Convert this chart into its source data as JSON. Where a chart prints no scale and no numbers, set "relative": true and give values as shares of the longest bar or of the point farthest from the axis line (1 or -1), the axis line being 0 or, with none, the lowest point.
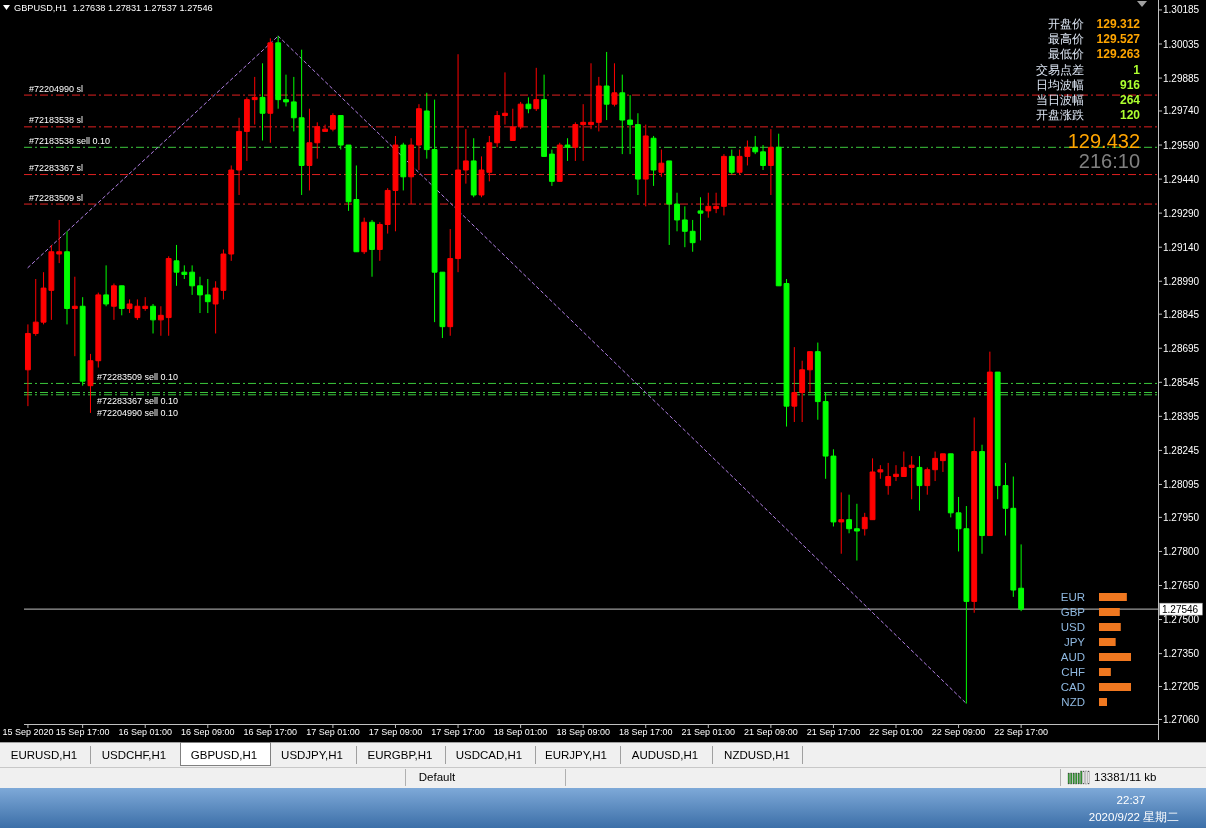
{
  "chart_data": [
    {
      "type": "candlestick",
      "title": "GBPUSD,H1  1.27638 1.27831 1.27537 1.27546",
      "categories": [
        "15 Sep 2020",
        null,
        null,
        null,
        null,
        null,
        null,
        "15 Sep 17:00",
        null,
        null,
        null,
        null,
        null,
        null,
        null,
        "16 Sep 01:00",
        null,
        null,
        null,
        null,
        null,
        null,
        null,
        "16 Sep 09:00",
        null,
        null,
        null,
        null,
        null,
        null,
        null,
        "16 Sep 17:00",
        null,
        null,
        null,
        null,
        null,
        null,
        null,
        "17 Sep 01:00",
        null,
        null,
        null,
        null,
        null,
        null,
        null,
        "17 Sep 09:00",
        null,
        null,
        null,
        null,
        null,
        null,
        null,
        "17 Sep 17:00",
        null,
        null,
        null,
        null,
        null,
        null,
        null,
        "18 Sep 01:00",
        null,
        null,
        null,
        null,
        null,
        null,
        null,
        "18 Sep 09:00",
        null,
        null,
        null,
        null,
        null,
        null,
        null,
        "18 Sep 17:00",
        null,
        null,
        null,
        null,
        null,
        null,
        null,
        "21 Sep 01:00",
        null,
        null,
        null,
        null,
        null,
        null,
        null,
        "21 Sep 09:00",
        null,
        null,
        null,
        null,
        null,
        null,
        null,
        "21 Sep 17:00",
        null,
        null,
        null,
        null,
        null,
        null,
        null,
        "22 Sep 01:00",
        null,
        null,
        null,
        null,
        null,
        null,
        null,
        "22 Sep 09:00",
        null,
        null,
        null,
        null,
        null,
        null,
        null,
        "22 Sep 17:00",
        null,
        null,
        null,
        null,
        null,
        null,
        null,
        null,
        null,
        null,
        null,
        null,
        null,
        null,
        null,
        null,
        null
      ],
      "ohlc": [
        [
          1.286,
          1.288,
          1.2844,
          1.2876
        ],
        [
          1.2876,
          1.29,
          1.2875,
          1.2881
        ],
        [
          1.2881,
          1.2903,
          1.288,
          1.2896
        ],
        [
          1.2895,
          1.2915,
          1.2882,
          1.2912
        ],
        [
          1.2911,
          1.2926,
          1.2907,
          1.2912
        ],
        [
          1.2912,
          1.2921,
          1.288,
          1.2887
        ],
        [
          1.2887,
          1.2901,
          1.2866,
          1.2888
        ],
        [
          1.2888,
          1.2892,
          1.2853,
          1.2855
        ],
        [
          1.2853,
          1.2867,
          1.2841,
          1.2864
        ],
        [
          1.2864,
          1.2894,
          1.2861,
          1.2893
        ],
        [
          1.2893,
          1.2906,
          1.2888,
          1.2889
        ],
        [
          1.2888,
          1.2898,
          1.2882,
          1.2897
        ],
        [
          1.2897,
          1.2897,
          1.2884,
          1.2887
        ],
        [
          1.2887,
          1.2891,
          1.2885,
          1.2889
        ],
        [
          1.2883,
          1.2891,
          1.2882,
          1.2888
        ],
        [
          1.2887,
          1.2892,
          1.2886,
          1.2888
        ],
        [
          1.2888,
          1.2889,
          1.2876,
          1.2882
        ],
        [
          1.2882,
          1.2888,
          1.2875,
          1.2884
        ],
        [
          1.2883,
          1.291,
          1.2875,
          1.2909
        ],
        [
          1.2908,
          1.2915,
          1.2897,
          1.2903
        ],
        [
          1.2903,
          1.2906,
          1.29,
          1.2902
        ],
        [
          1.2903,
          1.2906,
          1.2893,
          1.2897
        ],
        [
          1.2897,
          1.2901,
          1.2885,
          1.2893
        ],
        [
          1.2893,
          1.29,
          1.2885,
          1.289
        ],
        [
          1.2889,
          1.2899,
          1.2876,
          1.2896
        ],
        [
          1.2895,
          1.2913,
          1.2891,
          1.2911
        ],
        [
          1.2911,
          1.295,
          1.2908,
          1.2948
        ],
        [
          1.2948,
          1.2971,
          1.2937,
          1.2965
        ],
        [
          1.2965,
          1.298,
          1.2952,
          1.2979
        ],
        [
          1.2979,
          1.2989,
          1.2968,
          1.298
        ],
        [
          1.298,
          1.2995,
          1.2961,
          1.2973
        ],
        [
          1.2973,
          1.3006,
          1.296,
          1.3004
        ],
        [
          1.3004,
          1.3007,
          1.2975,
          1.2979
        ],
        [
          1.2979,
          1.299,
          1.2976,
          1.2978
        ],
        [
          1.2978,
          1.2989,
          1.2965,
          1.2971
        ],
        [
          1.2971,
          1.3001,
          1.2937,
          1.295
        ],
        [
          1.295,
          1.2975,
          1.2939,
          1.296
        ],
        [
          1.296,
          1.2969,
          1.2953,
          1.2967
        ],
        [
          1.2965,
          1.2968,
          1.2965,
          1.2966
        ],
        [
          1.2966,
          1.2973,
          1.2965,
          1.2972
        ],
        [
          1.2972,
          1.2972,
          1.2957,
          1.2959
        ],
        [
          1.2959,
          1.2959,
          1.293,
          1.2934
        ],
        [
          1.2935,
          1.295,
          1.2912,
          1.2912
        ],
        [
          1.2912,
          1.2927,
          1.2911,
          1.2925
        ],
        [
          1.2925,
          1.2926,
          1.2901,
          1.2913
        ],
        [
          1.2913,
          1.2925,
          1.2908,
          1.2924
        ],
        [
          1.2924,
          1.294,
          1.292,
          1.2939
        ],
        [
          1.2939,
          1.2963,
          1.2921,
          1.2959
        ],
        [
          1.2959,
          1.296,
          1.2939,
          1.2945
        ],
        [
          1.2945,
          1.2962,
          1.2933,
          1.2959
        ],
        [
          1.2959,
          1.2977,
          1.2948,
          1.2975
        ],
        [
          1.2974,
          1.2982,
          1.2953,
          1.2957
        ],
        [
          1.2957,
          1.2979,
          1.2881,
          1.2903
        ],
        [
          1.2903,
          1.2903,
          1.2874,
          1.2879
        ],
        [
          1.2879,
          1.2922,
          1.2875,
          1.2909
        ],
        [
          1.2909,
          1.2999,
          1.2903,
          1.2948
        ],
        [
          1.2948,
          1.2966,
          1.2942,
          1.2952
        ],
        [
          1.2952,
          1.2962,
          1.2936,
          1.2937
        ],
        [
          1.2937,
          1.2954,
          1.2936,
          1.2948
        ],
        [
          1.2947,
          1.2963,
          1.2943,
          1.296
        ],
        [
          1.296,
          1.2974,
          1.2958,
          1.2972
        ],
        [
          1.2972,
          1.2991,
          1.2968,
          1.2973
        ],
        [
          1.2961,
          1.2975,
          1.2961,
          1.2967
        ],
        [
          1.2967,
          1.2978,
          1.2966,
          1.2977
        ],
        [
          1.2977,
          1.298,
          1.2973,
          1.2975
        ],
        [
          1.2975,
          1.2993,
          1.2974,
          1.2979
        ],
        [
          1.2979,
          1.299,
          1.2954,
          1.2954
        ],
        [
          1.2955,
          1.2957,
          1.2941,
          1.2943
        ],
        [
          1.2943,
          1.296,
          1.2943,
          1.2959
        ],
        [
          1.2959,
          1.2962,
          1.2952,
          1.2958
        ],
        [
          1.2958,
          1.2969,
          1.2952,
          1.2968
        ],
        [
          1.2968,
          1.2977,
          1.2952,
          1.2969
        ],
        [
          1.2968,
          1.2995,
          1.2966,
          1.2969
        ],
        [
          1.2969,
          1.2989,
          1.2965,
          1.2985
        ],
        [
          1.2985,
          1.3,
          1.297,
          1.2977
        ],
        [
          1.2977,
          1.2995,
          1.2976,
          1.2982
        ],
        [
          1.2982,
          1.299,
          1.2955,
          1.297
        ],
        [
          1.297,
          1.2981,
          1.2955,
          1.2968
        ],
        [
          1.2968,
          1.2973,
          1.2937,
          1.2944
        ],
        [
          1.2944,
          1.2968,
          1.2932,
          1.2963
        ],
        [
          1.2962,
          1.2963,
          1.2941,
          1.2948
        ],
        [
          1.2947,
          1.2957,
          1.2945,
          1.2951
        ],
        [
          1.2952,
          1.2952,
          1.2915,
          1.2933
        ],
        [
          1.2933,
          1.2938,
          1.2921,
          1.2926
        ],
        [
          1.2926,
          1.2932,
          1.2914,
          1.2921
        ],
        [
          1.2921,
          1.2926,
          1.2912,
          1.2916
        ],
        [
          1.293,
          1.2936,
          1.2917,
          1.2929
        ],
        [
          1.293,
          1.2938,
          1.2927,
          1.2932
        ],
        [
          1.2931,
          1.2938,
          1.2929,
          1.2932
        ],
        [
          1.2932,
          1.2955,
          1.2928,
          1.2954
        ],
        [
          1.2954,
          1.2957,
          1.2946,
          1.2947
        ],
        [
          1.2947,
          1.2957,
          1.2946,
          1.2954
        ],
        [
          1.2954,
          1.2961,
          1.295,
          1.2958
        ],
        [
          1.2958,
          1.2963,
          1.2955,
          1.2956
        ],
        [
          1.2956,
          1.2959,
          1.2948,
          1.295
        ],
        [
          1.295,
          1.2966,
          1.2937,
          1.2958
        ],
        [
          1.2958,
          1.2964,
          1.2897,
          1.2897
        ],
        [
          1.2898,
          1.29,
          1.2835,
          1.2844
        ],
        [
          1.2844,
          1.287,
          1.2837,
          1.285
        ],
        [
          1.285,
          1.2864,
          1.2837,
          1.286
        ],
        [
          1.286,
          1.2868,
          1.285,
          1.2868
        ],
        [
          1.2868,
          1.2872,
          1.2838,
          1.2846
        ],
        [
          1.2846,
          1.285,
          1.2812,
          1.2822
        ],
        [
          1.2822,
          1.2825,
          1.2791,
          1.2793
        ],
        [
          1.2793,
          1.2806,
          1.2779,
          1.2794
        ],
        [
          1.2794,
          1.2805,
          1.2788,
          1.279
        ],
        [
          1.279,
          1.2801,
          1.2776,
          1.2789
        ],
        [
          1.279,
          1.2797,
          1.2787,
          1.2795
        ],
        [
          1.2794,
          1.2821,
          1.2794,
          1.2815
        ],
        [
          1.2815,
          1.2818,
          1.2812,
          1.2816
        ],
        [
          1.2809,
          1.2819,
          1.2805,
          1.2813
        ],
        [
          1.2813,
          1.2818,
          1.2811,
          1.2814
        ],
        [
          1.2813,
          1.2824,
          1.2813,
          1.2817
        ],
        [
          1.2817,
          1.2822,
          1.2803,
          1.2818
        ],
        [
          1.2817,
          1.2822,
          1.2798,
          1.2809
        ],
        [
          1.2809,
          1.2817,
          1.2805,
          1.2816
        ],
        [
          1.2816,
          1.2824,
          1.2811,
          1.2821
        ],
        [
          1.282,
          1.2823,
          1.2815,
          1.2823
        ],
        [
          1.2823,
          1.2823,
          1.2795,
          1.2797
        ],
        [
          1.2797,
          1.2804,
          1.278,
          1.279
        ],
        [
          1.279,
          1.28,
          1.2713,
          1.2758
        ],
        [
          1.2758,
          1.2839,
          1.2753,
          1.2824
        ],
        [
          1.2824,
          1.2827,
          1.2779,
          1.2787
        ],
        [
          1.2787,
          1.2868,
          1.2787,
          1.2859
        ],
        [
          1.2859,
          1.2859,
          1.2803,
          1.2809
        ],
        [
          1.2809,
          1.2819,
          1.2787,
          1.2799
        ],
        [
          1.2799,
          1.2813,
          1.276,
          1.2763
        ],
        [
          1.27638,
          1.27831,
          1.27537,
          1.27546
        ],
        null,
        null,
        null,
        null,
        null,
        null,
        null,
        null,
        null,
        null,
        null,
        null,
        null,
        null,
        null,
        null,
        null
      ],
      "colors": [
        "#ff0000",
        "#ff0000",
        "#ff0000",
        "#ff0000",
        "#ff0000",
        "#00ff00",
        "#ff0000",
        "#00ff00",
        "#ff0000",
        "#ff0000",
        "#00ff00",
        "#ff0000",
        "#00ff00",
        "#ff0000",
        "#ff0000",
        "#ff0000",
        "#00ff00",
        "#ff0000",
        "#ff0000",
        "#00ff00",
        "#00ff00",
        "#00ff00",
        "#00ff00",
        "#00ff00",
        "#ff0000",
        "#ff0000",
        "#ff0000",
        "#ff0000",
        "#ff0000",
        "#ff0000",
        "#00ff00",
        "#ff0000",
        "#00ff00",
        "#00ff00",
        "#00ff00",
        "#00ff00",
        "#ff0000",
        "#ff0000",
        "#ff0000",
        "#ff0000",
        "#00ff00",
        "#00ff00",
        "#00ff00",
        "#ff0000",
        "#00ff00",
        "#ff0000",
        "#ff0000",
        "#ff0000",
        "#00ff00",
        "#ff0000",
        "#ff0000",
        "#00ff00",
        "#00ff00",
        "#00ff00",
        "#ff0000",
        "#ff0000",
        "#ff0000",
        "#00ff00",
        "#ff0000",
        "#ff0000",
        "#ff0000",
        "#ff0000",
        "#ff0000",
        "#ff0000",
        "#00ff00",
        "#ff0000",
        "#00ff00",
        "#00ff00",
        "#ff0000",
        "#00ff00",
        "#ff0000",
        "#ff0000",
        "#ff0000",
        "#ff0000",
        "#00ff00",
        "#ff0000",
        "#00ff00",
        "#00ff00",
        "#00ff00",
        "#ff0000",
        "#00ff00",
        "#ff0000",
        "#00ff00",
        "#00ff00",
        "#00ff00",
        "#00ff00",
        "#00ff00",
        "#ff0000",
        "#ff0000",
        "#ff0000",
        "#00ff00",
        "#ff0000",
        "#ff0000",
        "#00ff00",
        "#00ff00",
        "#ff0000",
        "#00ff00",
        "#00ff00",
        "#ff0000",
        "#ff0000",
        "#ff0000",
        "#00ff00",
        "#00ff00",
        "#00ff00",
        "#ff0000",
        "#00ff00",
        "#00ff00",
        "#ff0000",
        "#ff0000",
        "#ff0000",
        "#ff0000",
        "#ff0000",
        "#ff0000",
        "#ff0000",
        "#00ff00",
        "#ff0000",
        "#ff0000",
        "#ff0000",
        "#00ff00",
        "#00ff00",
        "#00ff00",
        "#ff0000",
        "#00ff00",
        "#ff0000",
        "#00ff00",
        "#00ff00",
        "#00ff00",
        "#00ff00",
        null,
        null,
        null,
        null,
        null,
        null,
        null,
        null,
        null,
        null,
        null,
        null,
        null,
        null,
        null,
        null,
        null
      ],
      "ylim": [
        1.2704,
        1.3022
      ],
      "yticks": [
        1.30185,
        1.30035,
        1.29885,
        {
          "value": 1.2974,
          "label": "1.29740"
        },
        {
          "value": 1.2959,
          "label": "1.29590"
        },
        {
          "value": 1.2944,
          "label": "1.29440"
        },
        {
          "value": 1.2929,
          "label": "1.29290"
        },
        {
          "value": 1.2914,
          "label": "1.29140"
        },
        {
          "value": 1.2899,
          "label": "1.28990"
        },
        1.28845,
        1.28695,
        1.28545,
        1.28395,
        1.28245,
        1.28095,
        {
          "value": 1.2795,
          "label": "1.27950"
        },
        {
          "value": 1.278,
          "label": "1.27800"
        },
        {
          "value": 1.2765,
          "label": "1.27650"
        },
        {
          "value": 1.275,
          "label": "1.27500"
        },
        {
          "value": 1.2735,
          "label": "1.27350"
        },
        1.27205,
        {
          "value": 1.2706,
          "label": "1.27060"
        }
      ],
      "series": [
        {
          "type": "line",
          "color": "#b482e6",
          "line_style": "dotted",
          "values": [
            1.2905,
            null,
            null,
            null,
            null,
            null,
            null,
            null,
            null,
            null,
            null,
            null,
            null,
            null,
            null,
            null,
            null,
            null,
            null,
            null,
            null,
            null,
            null,
            null,
            null,
            null,
            null,
            null,
            null,
            null,
            null,
            null,
            1.3007,
            null,
            null,
            null,
            null,
            null,
            null,
            null,
            null,
            null,
            null,
            null,
            null,
            null,
            null,
            null,
            null,
            null,
            null,
            null,
            null,
            null,
            null,
            null,
            null,
            null,
            null,
            null,
            null,
            null,
            null,
            null,
            null,
            null,
            null,
            null,
            null,
            null,
            null,
            null,
            null,
            null,
            null,
            null,
            null,
            null,
            null,
            null,
            null,
            null,
            null,
            null,
            null,
            null,
            null,
            null,
            null,
            null,
            null,
            null,
            null,
            null,
            null,
            null,
            null,
            null,
            null,
            null,
            null,
            null,
            null,
            null,
            null,
            null,
            null,
            null,
            null,
            null,
            null,
            null,
            null,
            null,
            null,
            null,
            null,
            null,
            null,
            null,
            null,
            null,
            null,
            null,
            null,
            null,
            null,
            null,
            null,
            null,
            null,
            null,
            null,
            null,
            null,
            null,
            null,
            null,
            null,
            null,
            null,
            null,
            null,
            null,
            null
          ]
        },
        {
          "type": "line",
          "color": "#b482e6",
          "line_style": "dotted",
          "values": [
            null,
            null,
            null,
            null,
            null,
            null,
            null,
            null,
            null,
            null,
            null,
            null,
            null,
            null,
            null,
            null,
            null,
            null,
            null,
            null,
            null,
            null,
            null,
            null,
            null,
            null,
            null,
            null,
            null,
            null,
            null,
            null,
            1.3007,
            null,
            null,
            null,
            null,
            null,
            null,
            null,
            null,
            null,
            null,
            null,
            null,
            null,
            null,
            null,
            null,
            null,
            null,
            null,
            null,
            null,
            null,
            null,
            null,
            null,
            null,
            null,
            null,
            null,
            null,
            null,
            null,
            null,
            null,
            null,
            null,
            null,
            null,
            null,
            null,
            null,
            null,
            null,
            null,
            null,
            null,
            null,
            null,
            null,
            null,
            null,
            null,
            null,
            null,
            null,
            null,
            null,
            null,
            null,
            null,
            null,
            null,
            null,
            null,
            null,
            null,
            null,
            null,
            null,
            null,
            null,
            null,
            null,
            null,
            null,
            null,
            null,
            null,
            null,
            null,
            null,
            null,
            null,
            null,
            null,
            null,
            null,
            1.2713,
            null,
            null,
            null,
            null,
            null,
            null,
            null,
            null,
            null,
            null,
            null,
            null,
            null,
            null,
            null,
            null,
            null,
            null,
            null,
            null,
            null,
            null,
            null,
            null
          ]
        }
      ],
      "ref_lines": [
        {
          "axis": "y",
          "value": 1.2981,
          "label": "#72204990 sl",
          "color": "#e02020",
          "line_style": "dashed"
        },
        {
          "axis": "y",
          "value": 1.2967,
          "label": "#72183538 sl",
          "color": "#e02020",
          "line_style": "dashed"
        },
        {
          "axis": "y",
          "value": 1.2958,
          "label": "#72183538 sell 0.10",
          "color": "#3cc83c",
          "line_style": "dashed"
        },
        {
          "axis": "y",
          "value": 1.2946,
          "label": "#72283367 sl",
          "color": "#e02020",
          "line_style": "dashed"
        },
        {
          "axis": "y",
          "value": 1.2933,
          "label": "#72283509 sl",
          "color": "#e02020",
          "line_style": "dashed"
        },
        {
          "axis": "y",
          "value": 1.2854,
          "label": "#72283509 sell 0.10",
          "color": "#3cc83c",
          "line_style": "dashed"
        },
        {
          "axis": "y",
          "value": 1.285,
          "label": "#72283367 sell 0.10",
          "color": "#3cc83c",
          "line_style": "dashed"
        },
        {
          "axis": "y",
          "value": 1.2849,
          "label": "#72204990 sell 0.10",
          "color": "#3cc83c",
          "line_style": "dashed"
        },
        {
          "axis": "y",
          "value": 1.27546,
          "label": "1.27546",
          "color": "#c0c0c0",
          "line_style": "solid"
        }
      ],
      "annotations": [
        "开盘价",
        "129.312",
        "最高价",
        "129.527",
        "最低价",
        "129.263",
        "交易点差",
        "1",
        "日均波幅",
        "916",
        "当日波幅",
        "264",
        "开盘涨跌",
        "120",
        "129.432",
        "216:10",
        "EURUSD,H1",
        "USDCHF,H1",
        "GBPUSD,H1",
        "USDJPY,H1",
        "EURGBP,H1",
        "USDCAD,H1",
        "EURJPY,H1",
        "AUDUSD,H1",
        "NZDUSD,H1",
        "Default",
        "13381/11 kb",
        "22:37",
        "2020/9/22 星期二"
      ]
    },
    {
      "type": "bar",
      "orientation": "horizontal",
      "relative": true,
      "categories": [
        "EUR",
        "GBP",
        "USD",
        "JPY",
        "AUD",
        "CHF",
        "CAD",
        "NZD"
      ],
      "values": [
        0.87,
        0.65,
        0.68,
        0.52,
        1,
        0.37,
        1,
        0.25
      ],
      "colors": [
        "#f07820",
        "#f07820",
        "#f07820",
        "#f07820",
        "#f07820",
        "#f07820",
        "#f07820",
        "#f07820"
      ]
    }
  ]
}
